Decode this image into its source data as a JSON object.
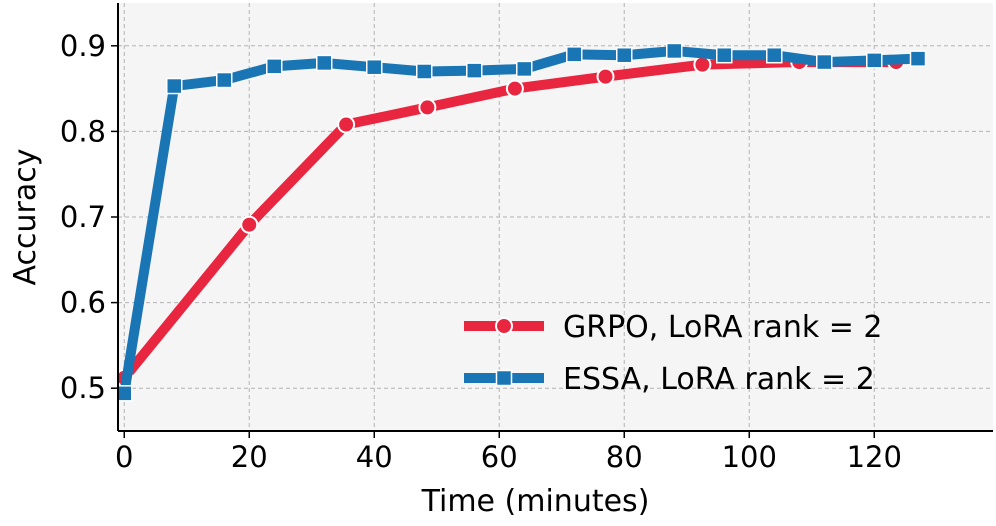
{
  "chart_data": {
    "type": "line",
    "xlabel": "Time (minutes)",
    "ylabel": "Accuracy",
    "xlim": [
      -1,
      139
    ],
    "ylim": [
      0.45,
      0.95
    ],
    "xticks": [
      0,
      20,
      40,
      60,
      80,
      100,
      120
    ],
    "yticks": [
      0.5,
      0.6,
      0.7,
      0.8,
      0.9
    ],
    "xtick_labels": [
      "0",
      "20",
      "40",
      "60",
      "80",
      "100",
      "120"
    ],
    "ytick_labels": [
      "0.5",
      "0.6",
      "0.7",
      "0.8",
      "0.9"
    ],
    "grid": true,
    "background": "#f5f5f5",
    "legend_position": "lower-right",
    "series": [
      {
        "name": "GRPO, LoRA rank = 2",
        "color": "#e8263f",
        "marker": "circle",
        "x": [
          0,
          20,
          35.5,
          48.5,
          62.5,
          77,
          92.5,
          108,
          123.5
        ],
        "y": [
          0.512,
          0.691,
          0.808,
          0.828,
          0.85,
          0.864,
          0.878,
          0.881,
          0.881
        ]
      },
      {
        "name": "ESSA, LoRA rank = 2",
        "color": "#1a75b5",
        "marker": "square",
        "x": [
          0,
          8,
          16,
          24,
          32,
          40,
          48,
          56,
          64,
          72,
          80,
          88,
          96,
          104,
          112,
          120,
          127
        ],
        "y": [
          0.494,
          0.853,
          0.86,
          0.876,
          0.88,
          0.875,
          0.87,
          0.871,
          0.873,
          0.89,
          0.889,
          0.894,
          0.889,
          0.889,
          0.881,
          0.883,
          0.885
        ]
      }
    ]
  }
}
